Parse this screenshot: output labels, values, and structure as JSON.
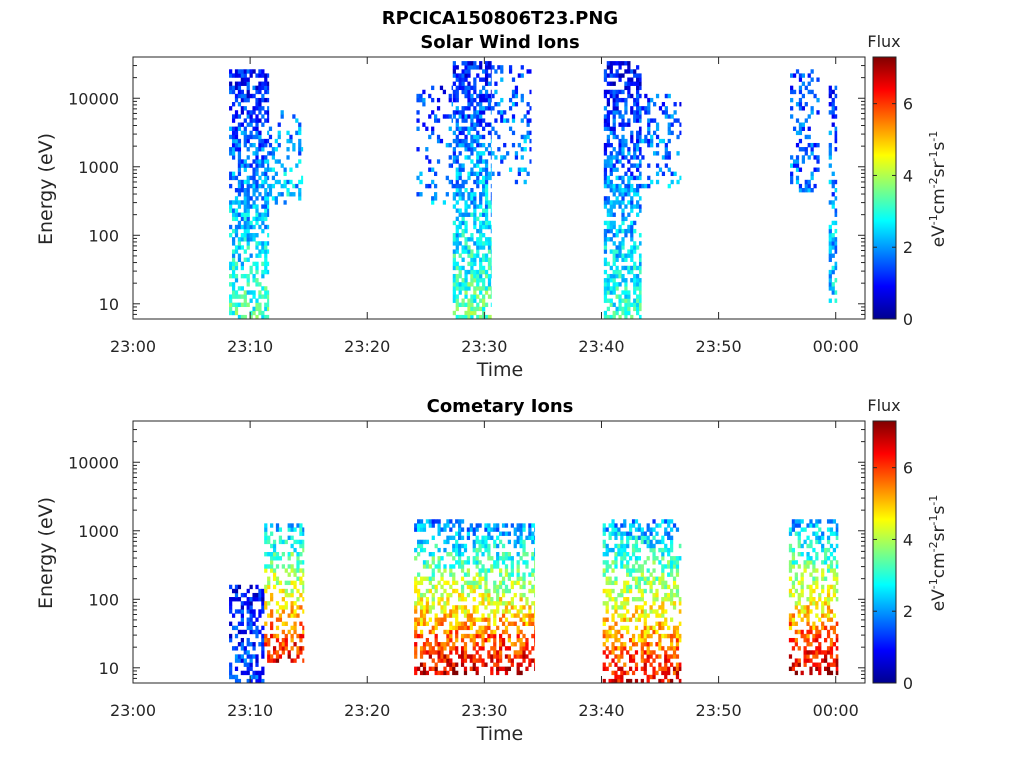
{
  "figure_title": "RPCICA150806T23.PNG",
  "colorbar_label": "Flux",
  "colorbar_units_parts": [
    {
      "t": "eV",
      "sup": false
    },
    {
      "t": "-1",
      "sup": true
    },
    {
      "t": "cm",
      "sup": false
    },
    {
      "t": "-2",
      "sup": true
    },
    {
      "t": "sr",
      "sup": false
    },
    {
      "t": "-1",
      "sup": true
    },
    {
      "t": "s",
      "sup": false
    },
    {
      "t": "-1",
      "sup": true
    }
  ],
  "colormap": [
    "#00008f",
    "#0000ff",
    "#0080ff",
    "#00ffff",
    "#80ff80",
    "#ffff00",
    "#ff8000",
    "#ff0000",
    "#800000"
  ],
  "chart_data": [
    {
      "type": "heatmap",
      "title": "Solar Wind Ions",
      "xlabel": "Time",
      "ylabel": "Energy (eV)",
      "x_ticks": [
        "23:00",
        "23:10",
        "23:20",
        "23:30",
        "23:40",
        "23:50",
        "00:00"
      ],
      "x_range_min": [
        0,
        62.5
      ],
      "y_scale": "log",
      "y_ticks": [
        10,
        100,
        1000,
        10000
      ],
      "y_tick_labels": [
        "10",
        "100",
        "1000",
        "10000"
      ],
      "y_range": [
        6,
        40000
      ],
      "colorbar_ticks": [
        0,
        2,
        4,
        6
      ],
      "colorbar_range": [
        0,
        7.3
      ],
      "grid": false,
      "bursts": [
        {
          "t_start": 8.2,
          "t_end": 11.6,
          "e_low": 6,
          "e_high": 25000,
          "flux_low": 3.2,
          "flux_high": 1.0,
          "density": 0.55
        },
        {
          "t_start": 11.6,
          "t_end": 14.5,
          "e_low": 300,
          "e_high": 7000,
          "flux_low": 2.5,
          "flux_high": 1.6,
          "density": 0.3
        },
        {
          "t_start": 24.2,
          "t_end": 27.3,
          "e_low": 300,
          "e_high": 15000,
          "flux_low": 2.0,
          "flux_high": 1.2,
          "density": 0.18
        },
        {
          "t_start": 27.3,
          "t_end": 30.6,
          "e_low": 6,
          "e_high": 35000,
          "flux_low": 3.4,
          "flux_high": 1.0,
          "density": 0.6
        },
        {
          "t_start": 30.6,
          "t_end": 34.0,
          "e_low": 600,
          "e_high": 30000,
          "flux_low": 2.0,
          "flux_high": 1.5,
          "density": 0.22
        },
        {
          "t_start": 40.2,
          "t_end": 43.4,
          "e_low": 6,
          "e_high": 35000,
          "flux_low": 3.0,
          "flux_high": 0.8,
          "density": 0.58
        },
        {
          "t_start": 43.4,
          "t_end": 46.8,
          "e_low": 500,
          "e_high": 12000,
          "flux_low": 2.0,
          "flux_high": 1.4,
          "density": 0.25
        },
        {
          "t_start": 56.1,
          "t_end": 58.6,
          "e_low": 400,
          "e_high": 30000,
          "flux_low": 1.9,
          "flux_high": 1.2,
          "density": 0.3
        },
        {
          "t_start": 59.4,
          "t_end": 60.1,
          "e_low": 10,
          "e_high": 15000,
          "flux_low": 2.6,
          "flux_high": 1.2,
          "density": 0.45
        }
      ]
    },
    {
      "type": "heatmap",
      "title": "Cometary Ions",
      "xlabel": "Time",
      "ylabel": "Energy (eV)",
      "x_ticks": [
        "23:00",
        "23:10",
        "23:20",
        "23:30",
        "23:40",
        "23:50",
        "00:00"
      ],
      "x_range_min": [
        0,
        62.5
      ],
      "y_scale": "log",
      "y_ticks": [
        10,
        100,
        1000,
        10000
      ],
      "y_tick_labels": [
        "10",
        "100",
        "1000",
        "10000"
      ],
      "y_range": [
        6,
        40000
      ],
      "colorbar_ticks": [
        0,
        2,
        4,
        6
      ],
      "colorbar_range": [
        0,
        7.3
      ],
      "grid": false,
      "bursts": [
        {
          "t_start": 8.2,
          "t_end": 11.2,
          "e_low": 6,
          "e_high": 160,
          "flux_low": 1.4,
          "flux_high": 0.9,
          "density": 0.5
        },
        {
          "t_start": 11.2,
          "t_end": 14.6,
          "e_low": 12,
          "e_high": 1300,
          "flux_low": 6.6,
          "flux_high": 2.3,
          "density": 0.45
        },
        {
          "t_start": 24.0,
          "t_end": 28.5,
          "e_low": 8,
          "e_high": 1500,
          "flux_low": 6.8,
          "flux_high": 1.8,
          "density": 0.5
        },
        {
          "t_start": 28.5,
          "t_end": 34.3,
          "e_low": 8,
          "e_high": 1300,
          "flux_low": 6.9,
          "flux_high": 1.9,
          "density": 0.5
        },
        {
          "t_start": 40.1,
          "t_end": 46.8,
          "e_low": 6,
          "e_high": 1400,
          "flux_low": 6.6,
          "flux_high": 2.0,
          "density": 0.48
        },
        {
          "t_start": 56.0,
          "t_end": 60.2,
          "e_low": 8,
          "e_high": 1500,
          "flux_low": 6.9,
          "flux_high": 2.0,
          "density": 0.5
        }
      ]
    }
  ]
}
